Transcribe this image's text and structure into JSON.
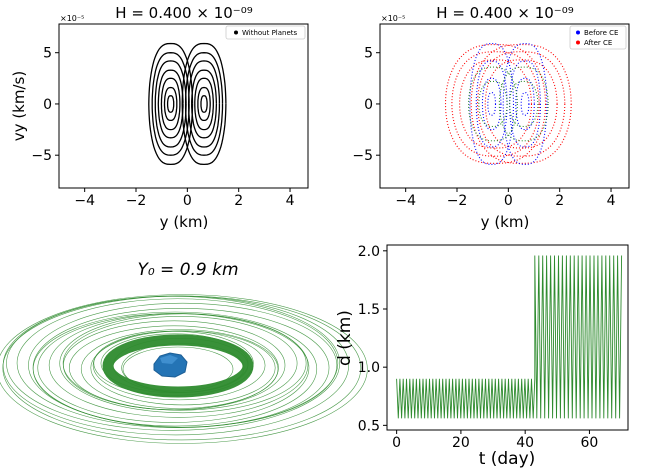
{
  "chart_data": [
    {
      "type": "scatter",
      "title": "H = 0.400 × 10⁻⁰⁹",
      "offset_label": "×10⁻⁵",
      "xlabel": "y (km)",
      "ylabel": "vy (km/s)",
      "xlim": [
        -5,
        4.7
      ],
      "ylim": [
        -8.2,
        7.8
      ],
      "xticks": [
        "−4",
        "−2",
        "0",
        "2",
        "4"
      ],
      "yticks": [
        "−5",
        "0",
        "5"
      ],
      "legend": [
        {
          "label": "Without Planets",
          "color": "#000000"
        }
      ],
      "legend_position": "top-right",
      "series": [
        {
          "name": "Without Planets",
          "color": "#000000",
          "orbits": [
            {
              "center_x": 0.65,
              "half_width": 0.85,
              "half_height": 5.9
            },
            {
              "center_x": 0.65,
              "half_width": 0.72,
              "half_height": 5.0
            },
            {
              "center_x": 0.65,
              "half_width": 0.6,
              "half_height": 4.2
            },
            {
              "center_x": 0.65,
              "half_width": 0.48,
              "half_height": 3.3
            },
            {
              "center_x": 0.65,
              "half_width": 0.36,
              "half_height": 2.5
            },
            {
              "center_x": 0.65,
              "half_width": 0.24,
              "half_height": 1.6
            },
            {
              "center_x": 0.65,
              "half_width": 0.12,
              "half_height": 0.8
            }
          ]
        }
      ]
    },
    {
      "type": "scatter",
      "title": "H = 0.400 × 10⁻⁰⁹",
      "offset_label": "×10⁻⁵",
      "xlabel": "y (km)",
      "ylabel": "",
      "xlim": [
        -5,
        4.7
      ],
      "ylim": [
        -8.2,
        7.8
      ],
      "xticks": [
        "−4",
        "−2",
        "0",
        "2",
        "4"
      ],
      "yticks": [
        "−5",
        "0",
        "5"
      ],
      "legend": [
        {
          "label": "Before CE",
          "color": "#0000ff"
        },
        {
          "label": "After CE",
          "color": "#ff0000"
        }
      ],
      "legend_position": "top-right",
      "series": [
        {
          "name": "After CE",
          "color": "#ff0000",
          "orbits": [
            {
              "center_x": 0.5,
              "half_width": 1.95,
              "half_height": 5.8
            },
            {
              "center_x": 0.5,
              "half_width": 1.7,
              "half_height": 5.1
            },
            {
              "center_x": 0.5,
              "half_width": 1.4,
              "half_height": 4.3
            }
          ]
        },
        {
          "name": "Before CE",
          "color": "#0000ff",
          "orbits": [
            {
              "center_x": 0.65,
              "half_width": 0.85,
              "half_height": 5.9
            },
            {
              "center_x": 0.65,
              "half_width": 0.6,
              "half_height": 4.2
            },
            {
              "center_x": 0.65,
              "half_width": 0.36,
              "half_height": 2.5
            },
            {
              "center_x": 0.65,
              "half_width": 0.15,
              "half_height": 1.1
            }
          ]
        },
        {
          "name": "",
          "color": "#2e8b2e",
          "orbits": [
            {
              "center_x": 0.6,
              "half_width": 0.95,
              "half_height": 3.6
            },
            {
              "center_x": 0.6,
              "half_width": 0.55,
              "half_height": 2.2
            }
          ]
        }
      ]
    },
    {
      "type": "line",
      "title": "Y₀ = 0.9 km",
      "description_type": "3d-orbit-render",
      "color": "#2e8b2e"
    },
    {
      "type": "line",
      "xlabel": "t (day)",
      "ylabel": "d (km)",
      "xlim": [
        -3,
        72
      ],
      "ylim": [
        0.46,
        2.05
      ],
      "xticks": [
        "0",
        "20",
        "40",
        "60"
      ],
      "yticks": [
        "0.5",
        "1.0",
        "1.5",
        "2.0"
      ],
      "series": [
        {
          "name": "",
          "color": "#2e8b2e",
          "segments": [
            {
              "t_start": 0,
              "t_end": 43,
              "min": 0.56,
              "max": 0.9,
              "cycles": 42
            },
            {
              "t_start": 43,
              "t_end": 70,
              "min": 0.56,
              "max": 1.96,
              "cycles": 22
            }
          ]
        }
      ]
    }
  ]
}
